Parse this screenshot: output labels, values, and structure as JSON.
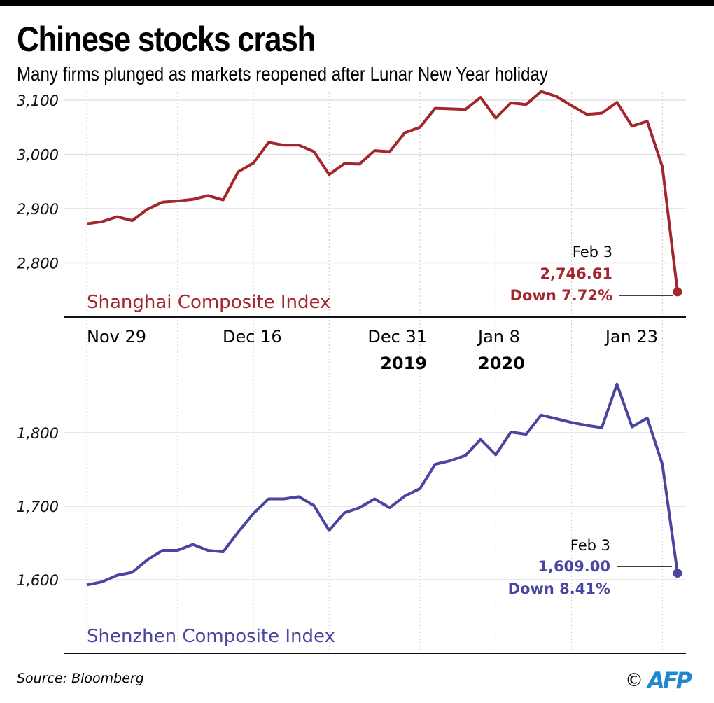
{
  "header": {
    "title": "Chinese stocks crash",
    "subtitle": "Many firms plunged as markets reopened after Lunar New Year holiday"
  },
  "footer": {
    "source": "Source: Bloomberg",
    "copyright_symbol": "©",
    "logo_text": "AFP"
  },
  "colors": {
    "shanghai": "#a3262e",
    "shenzhen": "#4a46a0",
    "logo": "#1e88d2"
  },
  "x_axis": {
    "tick_labels": [
      "Nov 29",
      "Dec 16",
      "Dec 31",
      "Jan 8",
      "Jan 23"
    ],
    "year_labels": [
      "2019",
      "2020"
    ],
    "gridline_dates": [
      "Nov 29",
      "Dec 9",
      "Dec 16",
      "Dec 23",
      "Dec 31",
      "Jan 8",
      "Jan 15",
      "Jan 23"
    ]
  },
  "chart_data": [
    {
      "type": "line",
      "title": "Shanghai Composite Index",
      "series_name": "Shanghai Composite Index",
      "xlabel": "",
      "ylabel": "",
      "ylim": [
        2720,
        3115
      ],
      "yticks": [
        2800,
        2900,
        3000,
        3100
      ],
      "ytick_labels": [
        "2,800",
        "2,900",
        "3,000",
        "3,100"
      ],
      "grid": true,
      "x": [
        "Nov 29",
        "Dec 2",
        "Dec 3",
        "Dec 4",
        "Dec 5",
        "Dec 6",
        "Dec 9",
        "Dec 10",
        "Dec 11",
        "Dec 12",
        "Dec 13",
        "Dec 16",
        "Dec 17",
        "Dec 18",
        "Dec 19",
        "Dec 20",
        "Dec 23",
        "Dec 24",
        "Dec 25",
        "Dec 26",
        "Dec 27",
        "Dec 30",
        "Dec 31",
        "Jan 2",
        "Jan 3",
        "Jan 6",
        "Jan 7",
        "Jan 8",
        "Jan 9",
        "Jan 10",
        "Jan 13",
        "Jan 14",
        "Jan 15",
        "Jan 16",
        "Jan 17",
        "Jan 20",
        "Jan 21",
        "Jan 22",
        "Jan 23",
        "Feb 3"
      ],
      "values": [
        2872,
        2876,
        2885,
        2878,
        2899,
        2912,
        2914,
        2917,
        2924,
        2916,
        2968,
        2984,
        3022,
        3017,
        3017,
        3005,
        2963,
        2983,
        2982,
        3007,
        3005,
        3040,
        3050,
        3085,
        3084,
        3083,
        3105,
        3067,
        3095,
        3092,
        3116,
        3107,
        3090,
        3074,
        3076,
        3096,
        3052,
        3061,
        2977,
        2746.61
      ],
      "annotation": {
        "date": "Feb 3",
        "value": "2,746.61",
        "change": "Down 7.72%"
      }
    },
    {
      "type": "line",
      "title": "Shenzhen Composite Index",
      "series_name": "Shenzhen Composite Index",
      "xlabel": "",
      "ylabel": "",
      "ylim": [
        1500,
        1890
      ],
      "yticks": [
        1600,
        1700,
        1800
      ],
      "ytick_labels": [
        "1,600",
        "1,700",
        "1,800"
      ],
      "grid": true,
      "x": [
        "Nov 29",
        "Dec 2",
        "Dec 3",
        "Dec 4",
        "Dec 5",
        "Dec 6",
        "Dec 9",
        "Dec 10",
        "Dec 11",
        "Dec 12",
        "Dec 13",
        "Dec 16",
        "Dec 17",
        "Dec 18",
        "Dec 19",
        "Dec 20",
        "Dec 23",
        "Dec 24",
        "Dec 25",
        "Dec 26",
        "Dec 27",
        "Dec 30",
        "Dec 31",
        "Jan 2",
        "Jan 3",
        "Jan 6",
        "Jan 7",
        "Jan 8",
        "Jan 9",
        "Jan 10",
        "Jan 13",
        "Jan 14",
        "Jan 15",
        "Jan 16",
        "Jan 17",
        "Jan 20",
        "Jan 21",
        "Jan 22",
        "Jan 23",
        "Feb 3"
      ],
      "values": [
        1593,
        1597,
        1606,
        1610,
        1627,
        1640,
        1640,
        1648,
        1640,
        1638,
        1665,
        1690,
        1710,
        1710,
        1713,
        1701,
        1667,
        1691,
        1698,
        1710,
        1698,
        1714,
        1724,
        1757,
        1762,
        1769,
        1791,
        1770,
        1801,
        1798,
        1824,
        1819,
        1814,
        1810,
        1807,
        1866,
        1808,
        1820,
        1757,
        1609.0
      ],
      "annotation": {
        "date": "Feb 3",
        "value": "1,609.00",
        "change": "Down 8.41%"
      }
    }
  ]
}
